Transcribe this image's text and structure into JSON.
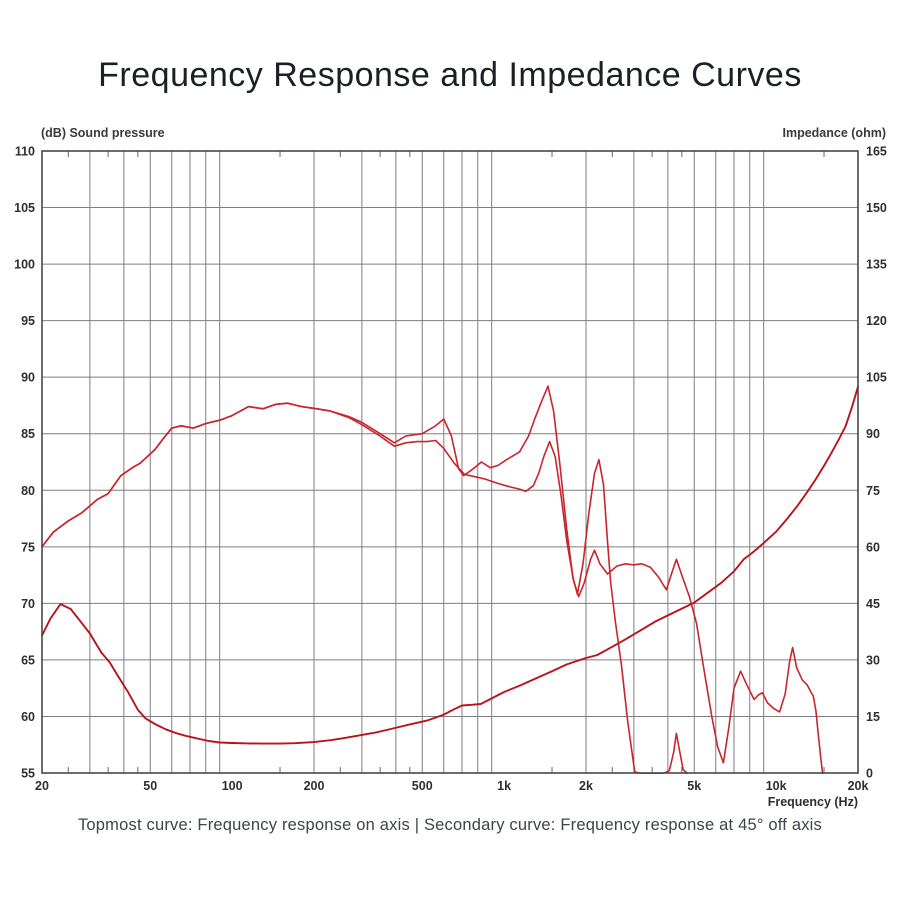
{
  "title": "Frequency Response and Impedance Curves",
  "caption": "Topmost curve: Frequency response on axis | Secondary curve: Frequency response at 45° off axis",
  "colors": {
    "background": "#ffffff",
    "grid": "#7e7e7e",
    "border": "#484848",
    "tick_label": "#2f2f2f",
    "response_curve": "#c8252c",
    "impedance_curve": "#b9141b",
    "title_text": "#1a2025",
    "caption_text": "#3d444a"
  },
  "chart_data": {
    "type": "line",
    "title": "Frequency Response and Impedance Curves",
    "x_axis": {
      "label": "Frequency  (Hz)",
      "scale": "log",
      "min": 20,
      "max": 20000,
      "tick_values": [
        20,
        50,
        100,
        200,
        500,
        1000,
        2000,
        5000,
        10000,
        20000
      ],
      "tick_labels": [
        "20",
        "50",
        "100",
        "200",
        "500",
        "1k",
        "2k",
        "5k",
        "10k",
        "20k"
      ],
      "minor_ticks": [
        25,
        35,
        45,
        150,
        250,
        350,
        450,
        1500,
        2500,
        3500,
        4500,
        15000
      ]
    },
    "y_left": {
      "label": "(dB)  Sound pressure",
      "min": 55,
      "max": 110,
      "step": 5,
      "tick_values": [
        110,
        105,
        100,
        95,
        90,
        85,
        80,
        75,
        70,
        65,
        60,
        55
      ],
      "tick_labels": [
        "110",
        "105",
        "100",
        "95",
        "90",
        "85",
        "80",
        "75",
        "70",
        "65",
        "60",
        "55"
      ]
    },
    "y_right": {
      "label": "Impedance  (ohm)",
      "min": 0,
      "max": 165,
      "step": 15,
      "tick_values": [
        165,
        150,
        135,
        120,
        105,
        90,
        75,
        60,
        45,
        30,
        15,
        0
      ],
      "tick_labels": [
        "165",
        "150",
        "135",
        "120",
        "105",
        "90",
        "75",
        "60",
        "45",
        "30",
        "15",
        "0"
      ]
    },
    "grid": {
      "vertical": "log-decades 2-9 per decade",
      "horizontal": "every 5 dB",
      "shown": true
    },
    "legend_position": "none",
    "series": [
      {
        "name": "Frequency response on axis",
        "role": "topmost curve",
        "unit": "dB",
        "axis": "left",
        "points": [
          [
            20,
            75.0
          ],
          [
            22,
            76.3
          ],
          [
            25,
            77.3
          ],
          [
            28,
            78.0
          ],
          [
            32,
            79.2
          ],
          [
            35,
            79.7
          ],
          [
            39,
            81.3
          ],
          [
            43,
            82.0
          ],
          [
            46,
            82.4
          ],
          [
            52,
            83.6
          ],
          [
            56,
            84.6
          ],
          [
            60,
            85.5
          ],
          [
            65,
            85.7
          ],
          [
            72,
            85.5
          ],
          [
            80,
            85.9
          ],
          [
            90,
            86.2
          ],
          [
            100,
            86.6
          ],
          [
            115,
            87.4
          ],
          [
            130,
            87.2
          ],
          [
            145,
            87.6
          ],
          [
            160,
            87.7
          ],
          [
            180,
            87.4
          ],
          [
            205,
            87.2
          ],
          [
            230,
            87.0
          ],
          [
            270,
            86.5
          ],
          [
            300,
            86.0
          ],
          [
            345,
            85.1
          ],
          [
            395,
            84.2
          ],
          [
            435,
            84.8
          ],
          [
            500,
            85.0
          ],
          [
            560,
            85.7
          ],
          [
            600,
            86.3
          ],
          [
            640,
            84.8
          ],
          [
            680,
            81.9
          ],
          [
            710,
            81.3
          ],
          [
            770,
            81.9
          ],
          [
            825,
            82.5
          ],
          [
            890,
            82.0
          ],
          [
            950,
            82.2
          ],
          [
            1020,
            82.7
          ],
          [
            1140,
            83.4
          ],
          [
            1230,
            84.8
          ],
          [
            1300,
            86.4
          ],
          [
            1380,
            88.0
          ],
          [
            1450,
            89.2
          ],
          [
            1520,
            87.0
          ],
          [
            1600,
            82.5
          ],
          [
            1700,
            76.5
          ],
          [
            1790,
            72.3
          ],
          [
            1860,
            70.8
          ],
          [
            1950,
            73.5
          ],
          [
            2050,
            78.0
          ],
          [
            2150,
            81.5
          ],
          [
            2230,
            82.7
          ],
          [
            2320,
            80.5
          ],
          [
            2400,
            75.5
          ],
          [
            2460,
            72.0
          ],
          [
            2560,
            68.5
          ],
          [
            2700,
            64.5
          ],
          [
            2850,
            59.5
          ],
          [
            3020,
            55.1
          ],
          [
            3200,
            54.95
          ],
          [
            3500,
            54.9
          ],
          [
            3800,
            54.9
          ],
          [
            4050,
            55.2
          ],
          [
            4200,
            56.8
          ],
          [
            4300,
            58.5
          ],
          [
            4400,
            57.2
          ],
          [
            4550,
            55.3
          ],
          [
            4700,
            55.0
          ],
          [
            4850,
            53.5
          ],
          [
            4950,
            52.0
          ]
        ]
      },
      {
        "name": "Frequency response at 45° off axis",
        "role": "secondary curve",
        "unit": "dB",
        "axis": "left",
        "points": [
          [
            20,
            75.0
          ],
          [
            22,
            76.3
          ],
          [
            25,
            77.3
          ],
          [
            28,
            78.0
          ],
          [
            32,
            79.2
          ],
          [
            35,
            79.7
          ],
          [
            39,
            81.3
          ],
          [
            43,
            82.0
          ],
          [
            46,
            82.4
          ],
          [
            52,
            83.6
          ],
          [
            56,
            84.6
          ],
          [
            60,
            85.5
          ],
          [
            65,
            85.7
          ],
          [
            72,
            85.5
          ],
          [
            80,
            85.9
          ],
          [
            90,
            86.2
          ],
          [
            100,
            86.6
          ],
          [
            115,
            87.4
          ],
          [
            130,
            87.2
          ],
          [
            145,
            87.6
          ],
          [
            160,
            87.7
          ],
          [
            180,
            87.4
          ],
          [
            205,
            87.2
          ],
          [
            230,
            87.0
          ],
          [
            270,
            86.4
          ],
          [
            300,
            85.8
          ],
          [
            345,
            84.9
          ],
          [
            395,
            83.9
          ],
          [
            435,
            84.2
          ],
          [
            480,
            84.3
          ],
          [
            520,
            84.3
          ],
          [
            560,
            84.4
          ],
          [
            600,
            83.7
          ],
          [
            655,
            82.4
          ],
          [
            715,
            81.4
          ],
          [
            780,
            81.2
          ],
          [
            850,
            81.0
          ],
          [
            950,
            80.6
          ],
          [
            1050,
            80.3
          ],
          [
            1140,
            80.1
          ],
          [
            1200,
            79.9
          ],
          [
            1280,
            80.4
          ],
          [
            1340,
            81.5
          ],
          [
            1400,
            83.0
          ],
          [
            1470,
            84.3
          ],
          [
            1540,
            83.0
          ],
          [
            1620,
            79.5
          ],
          [
            1700,
            75.5
          ],
          [
            1800,
            72.0
          ],
          [
            1880,
            70.6
          ],
          [
            1970,
            71.8
          ],
          [
            2080,
            73.9
          ],
          [
            2150,
            74.7
          ],
          [
            2250,
            73.5
          ],
          [
            2400,
            72.6
          ],
          [
            2600,
            73.3
          ],
          [
            2800,
            73.5
          ],
          [
            3000,
            73.4
          ],
          [
            3200,
            73.5
          ],
          [
            3450,
            73.2
          ],
          [
            3700,
            72.3
          ],
          [
            3950,
            71.2
          ],
          [
            4150,
            72.8
          ],
          [
            4300,
            73.9
          ],
          [
            4500,
            72.5
          ],
          [
            4800,
            70.6
          ],
          [
            5100,
            68.2
          ],
          [
            5400,
            64.5
          ],
          [
            5800,
            60.0
          ],
          [
            6100,
            57.3
          ],
          [
            6400,
            55.9
          ],
          [
            6700,
            59.0
          ],
          [
            7000,
            62.5
          ],
          [
            7400,
            64.0
          ],
          [
            7800,
            62.8
          ],
          [
            8300,
            61.5
          ],
          [
            8600,
            61.9
          ],
          [
            8900,
            62.1
          ],
          [
            9300,
            61.2
          ],
          [
            9800,
            60.7
          ],
          [
            10300,
            60.4
          ],
          [
            10800,
            62.0
          ],
          [
            11200,
            64.8
          ],
          [
            11500,
            66.1
          ],
          [
            11900,
            64.3
          ],
          [
            12500,
            63.2
          ],
          [
            13000,
            62.8
          ],
          [
            13400,
            62.2
          ],
          [
            13700,
            61.8
          ],
          [
            14000,
            60.5
          ],
          [
            14300,
            58.3
          ],
          [
            14600,
            56.3
          ],
          [
            14900,
            54.5
          ],
          [
            15100,
            52.5
          ]
        ]
      },
      {
        "name": "Impedance",
        "role": "impedance curve",
        "unit": "ohm",
        "axis": "right",
        "points": [
          [
            20,
            36.5
          ],
          [
            21.5,
            41.0
          ],
          [
            23.4,
            44.8
          ],
          [
            25.5,
            43.5
          ],
          [
            27.5,
            40.5
          ],
          [
            30,
            37.0
          ],
          [
            33,
            32.0
          ],
          [
            35.5,
            29.3
          ],
          [
            38,
            25.8
          ],
          [
            41.5,
            21.4
          ],
          [
            45,
            16.8
          ],
          [
            48,
            14.5
          ],
          [
            52,
            13.0
          ],
          [
            57,
            11.6
          ],
          [
            62,
            10.6
          ],
          [
            68,
            9.8
          ],
          [
            75,
            9.1
          ],
          [
            82,
            8.5
          ],
          [
            90,
            8.1
          ],
          [
            100,
            7.95
          ],
          [
            115,
            7.85
          ],
          [
            130,
            7.8
          ],
          [
            150,
            7.8
          ],
          [
            170,
            7.9
          ],
          [
            200,
            8.2
          ],
          [
            230,
            8.7
          ],
          [
            260,
            9.3
          ],
          [
            300,
            10.1
          ],
          [
            340,
            10.8
          ],
          [
            390,
            11.8
          ],
          [
            450,
            12.9
          ],
          [
            520,
            13.9
          ],
          [
            600,
            15.5
          ],
          [
            650,
            16.8
          ],
          [
            700,
            17.9
          ],
          [
            760,
            18.1
          ],
          [
            820,
            18.3
          ],
          [
            900,
            19.8
          ],
          [
            1000,
            21.5
          ],
          [
            1150,
            23.3
          ],
          [
            1300,
            25.0
          ],
          [
            1500,
            27.0
          ],
          [
            1700,
            28.8
          ],
          [
            2000,
            30.5
          ],
          [
            2200,
            31.3
          ],
          [
            2500,
            33.5
          ],
          [
            2800,
            35.5
          ],
          [
            3200,
            38.0
          ],
          [
            3600,
            40.2
          ],
          [
            4000,
            41.8
          ],
          [
            4500,
            43.6
          ],
          [
            5000,
            45.2
          ],
          [
            5600,
            47.8
          ],
          [
            6300,
            50.5
          ],
          [
            7000,
            53.5
          ],
          [
            7600,
            56.7
          ],
          [
            8200,
            58.5
          ],
          [
            9000,
            61.0
          ],
          [
            10000,
            64.0
          ],
          [
            11000,
            67.5
          ],
          [
            12000,
            71.0
          ],
          [
            13000,
            74.5
          ],
          [
            14000,
            78.0
          ],
          [
            15000,
            81.5
          ],
          [
            16000,
            85.0
          ],
          [
            17000,
            88.5
          ],
          [
            18000,
            92.0
          ],
          [
            19000,
            97.0
          ],
          [
            20000,
            102.5
          ]
        ]
      }
    ]
  }
}
